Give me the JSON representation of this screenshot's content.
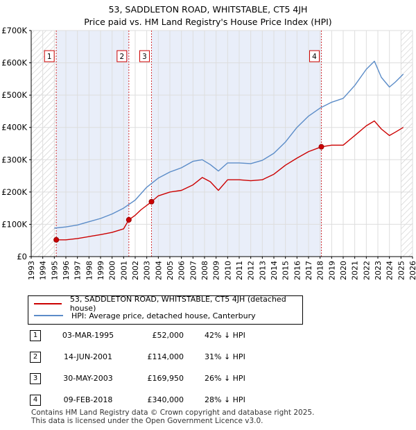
{
  "title": "53, SADDLETON ROAD, WHITSTABLE, CT5 4JH",
  "subtitle": "Price paid vs. HM Land Registry's House Price Index (HPI)",
  "legend": [
    {
      "label": "53, SADDLETON ROAD, WHITSTABLE, CT5 4JH (detached house)",
      "color": "#cc0000"
    },
    {
      "label": "HPI: Average price, detached house, Canterbury",
      "color": "#5b8cc8"
    }
  ],
  "sales": [
    {
      "num": "1",
      "date": "03-MAR-1995",
      "price": "£52,000",
      "hpi": "42% ↓ HPI"
    },
    {
      "num": "2",
      "date": "14-JUN-2001",
      "price": "£114,000",
      "hpi": "31% ↓ HPI"
    },
    {
      "num": "3",
      "date": "30-MAY-2003",
      "price": "£169,950",
      "hpi": "26% ↓ HPI"
    },
    {
      "num": "4",
      "date": "09-FEB-2018",
      "price": "£340,000",
      "hpi": "28% ↓ HPI"
    }
  ],
  "footer": {
    "line1": "Contains HM Land Registry data © Crown copyright and database right 2025.",
    "line2": "This data is licensed under the Open Government Licence v3.0."
  },
  "chart_data": {
    "type": "line",
    "title": "53, SADDLETON ROAD, WHITSTABLE, CT5 4JH",
    "subtitle": "Price paid vs. HM Land Registry's House Price Index (HPI)",
    "xlim": [
      1993,
      2026
    ],
    "ylim": [
      0,
      700000
    ],
    "x_ticks": [
      1993,
      1994,
      1995,
      1996,
      1997,
      1998,
      1999,
      2000,
      2001,
      2002,
      2003,
      2004,
      2005,
      2006,
      2007,
      2008,
      2009,
      2010,
      2011,
      2012,
      2013,
      2014,
      2015,
      2016,
      2017,
      2018,
      2019,
      2020,
      2021,
      2022,
      2023,
      2024,
      2025,
      2026
    ],
    "y_ticks": [
      {
        "value": 0,
        "label": "£0"
      },
      {
        "value": 100000,
        "label": "£100K"
      },
      {
        "value": 200000,
        "label": "£200K"
      },
      {
        "value": 300000,
        "label": "£300K"
      },
      {
        "value": 400000,
        "label": "£400K"
      },
      {
        "value": 500000,
        "label": "£500K"
      },
      {
        "value": 600000,
        "label": "£600K"
      },
      {
        "value": 700000,
        "label": "£700K"
      }
    ],
    "grid": true,
    "hatched_ranges": [
      [
        1993,
        1995.17
      ],
      [
        2025.0,
        2026
      ]
    ],
    "shaded_ranges": [
      [
        1995.17,
        2001.45
      ],
      [
        2003.41,
        2018.11
      ]
    ],
    "series": [
      {
        "name": "HPI: Average price, detached house, Canterbury",
        "color": "#5b8cc8",
        "x": [
          1995.0,
          1996.0,
          1997.0,
          1998.0,
          1999.0,
          2000.0,
          2001.0,
          2002.0,
          2003.0,
          2004.0,
          2005.0,
          2006.0,
          2007.0,
          2007.8,
          2008.5,
          2009.2,
          2010.0,
          2011.0,
          2012.0,
          2013.0,
          2014.0,
          2015.0,
          2016.0,
          2017.0,
          2018.0,
          2019.0,
          2020.0,
          2021.0,
          2022.0,
          2022.7,
          2023.3,
          2024.0,
          2024.5,
          2025.2
        ],
        "y": [
          88000,
          92000,
          98000,
          108000,
          118000,
          132000,
          150000,
          175000,
          215000,
          243000,
          262000,
          275000,
          295000,
          300000,
          285000,
          265000,
          290000,
          290000,
          288000,
          298000,
          320000,
          355000,
          400000,
          435000,
          460000,
          478000,
          490000,
          530000,
          580000,
          605000,
          555000,
          525000,
          540000,
          565000
        ]
      },
      {
        "name": "53, SADDLETON ROAD, WHITSTABLE, CT5 4JH (detached house)",
        "color": "#cc0000",
        "x": [
          1995.17,
          1996.0,
          1997.0,
          1998.0,
          1999.0,
          2000.0,
          2001.0,
          2001.45,
          2002.0,
          2002.5,
          2003.41,
          2004.0,
          2005.0,
          2006.0,
          2007.0,
          2007.8,
          2008.5,
          2009.2,
          2010.0,
          2011.0,
          2012.0,
          2013.0,
          2014.0,
          2015.0,
          2016.0,
          2017.0,
          2018.11,
          2019.0,
          2020.0,
          2021.0,
          2022.0,
          2022.7,
          2023.3,
          2024.0,
          2024.5,
          2025.2
        ],
        "y": [
          52000,
          52000,
          56000,
          62000,
          68000,
          75000,
          86000,
          114000,
          128000,
          145000,
          169950,
          188000,
          200000,
          205000,
          222000,
          245000,
          232000,
          205000,
          238000,
          238000,
          235000,
          238000,
          255000,
          283000,
          305000,
          325000,
          340000,
          345000,
          345000,
          375000,
          405000,
          420000,
          395000,
          375000,
          385000,
          400000
        ]
      }
    ],
    "sale_markers": [
      {
        "label": "1",
        "x": 1995.17,
        "y": 52000
      },
      {
        "label": "2",
        "x": 2001.45,
        "y": 114000
      },
      {
        "label": "3",
        "x": 2003.41,
        "y": 169950
      },
      {
        "label": "4",
        "x": 2018.11,
        "y": 340000
      }
    ]
  }
}
